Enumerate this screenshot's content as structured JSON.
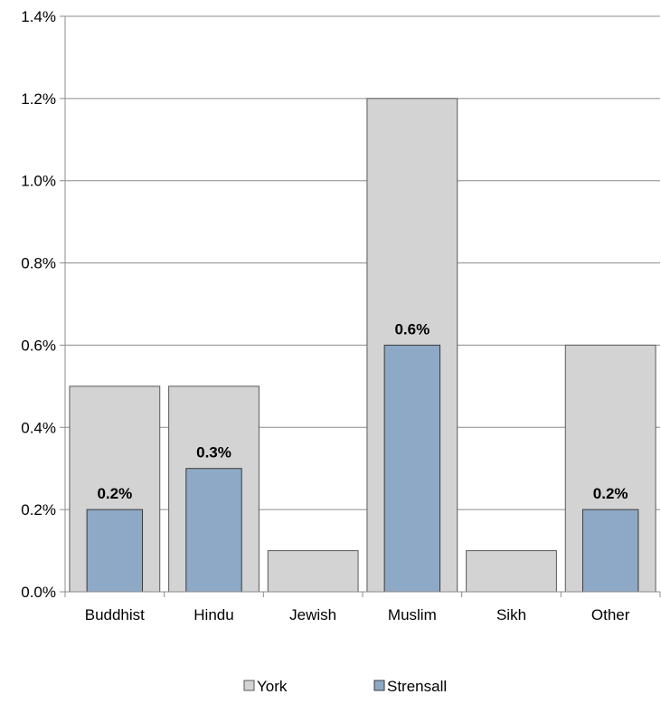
{
  "chart_data": {
    "type": "bar",
    "categories": [
      "Buddhist",
      "Hindu",
      "Jewish",
      "Muslim",
      "Sikh",
      "Other"
    ],
    "series": [
      {
        "name": "York",
        "values": [
          0.5,
          0.5,
          0.1,
          1.2,
          0.1,
          0.6
        ],
        "color": "#d3d3d3"
      },
      {
        "name": "Strensall",
        "values": [
          0.2,
          0.3,
          0.0,
          0.6,
          0.0,
          0.2
        ],
        "color": "#8ea9c6"
      }
    ],
    "data_labels": {
      "series": "Strensall",
      "labels": [
        "0.2%",
        "0.3%",
        "",
        "0.6%",
        "",
        "0.2%"
      ]
    },
    "y_ticks": [
      "0.0%",
      "0.2%",
      "0.4%",
      "0.6%",
      "0.8%",
      "1.0%",
      "1.2%",
      "1.4%"
    ],
    "ylim": [
      0,
      1.4
    ],
    "y_unit": "%",
    "grid": true,
    "legend_position": "bottom"
  }
}
